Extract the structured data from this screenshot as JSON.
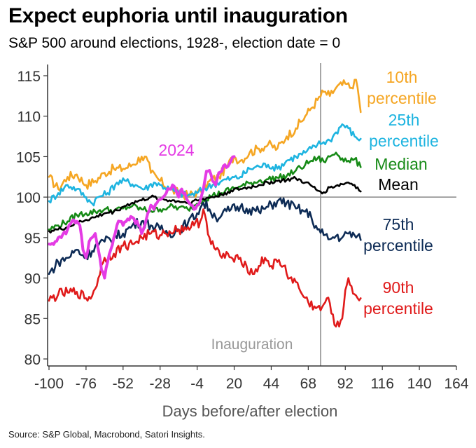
{
  "header": {
    "title": "Expect euphoria until inauguration",
    "subtitle": "S&P 500 around elections, 1928-, election date = 0"
  },
  "footer": {
    "source": "Source: S&P Global, Macrobond, Satori Insights."
  },
  "colors": {
    "p10": "#F5A623",
    "p25": "#1EB4E0",
    "median": "#168A16",
    "mean": "#000000",
    "p75": "#0D2B55",
    "p90": "#E01A1A",
    "y2024": "#E43BE4",
    "axis": "#333333",
    "vline": "#888888",
    "baseline": "#888888"
  },
  "chart_data": {
    "type": "line",
    "title": "Expect euphoria until inauguration",
    "subtitle": "S&P 500 around elections, 1928-, election date = 0",
    "xlabel": "Days before/after election",
    "ylabel": "",
    "xlim": [
      -100,
      164
    ],
    "ylim": [
      80,
      115
    ],
    "x_ticks": [
      -100,
      -76,
      -52,
      -28,
      -4,
      20,
      44,
      68,
      92,
      116,
      140,
      164
    ],
    "y_ticks": [
      80,
      85,
      90,
      95,
      100,
      105,
      110,
      115
    ],
    "reference_line_y": 100,
    "annotation": {
      "label": "Inauguration",
      "x": 76
    },
    "series": [
      {
        "key": "p10",
        "name": "10th percentile",
        "label_lines": [
          "10th",
          "percentile"
        ],
        "points": [
          [
            -100,
            102.5
          ],
          [
            -94,
            101
          ],
          [
            -88,
            102.5
          ],
          [
            -82,
            102.8
          ],
          [
            -76,
            101.5
          ],
          [
            -70,
            102
          ],
          [
            -64,
            103
          ],
          [
            -58,
            103.5
          ],
          [
            -52,
            103.5
          ],
          [
            -46,
            104
          ],
          [
            -40,
            105
          ],
          [
            -36,
            104.5
          ],
          [
            -34,
            103
          ],
          [
            -28,
            102
          ],
          [
            -22,
            101
          ],
          [
            -16,
            100.5
          ],
          [
            -10,
            100.2
          ],
          [
            -4,
            100.6
          ],
          [
            0,
            100.8
          ],
          [
            4,
            102
          ],
          [
            10,
            102.5
          ],
          [
            16,
            104
          ],
          [
            20,
            105
          ],
          [
            24,
            104.5
          ],
          [
            30,
            105.5
          ],
          [
            36,
            106
          ],
          [
            42,
            106.5
          ],
          [
            48,
            106
          ],
          [
            54,
            107.5
          ],
          [
            60,
            108.5
          ],
          [
            66,
            110
          ],
          [
            70,
            111
          ],
          [
            74,
            112
          ],
          [
            78,
            113
          ],
          [
            82,
            112.5
          ],
          [
            86,
            113.5
          ],
          [
            92,
            114
          ],
          [
            96,
            113.5
          ],
          [
            98,
            114.5
          ],
          [
            100,
            113.5
          ],
          [
            102,
            110.5
          ]
        ]
      },
      {
        "key": "p25",
        "name": "25th percentile",
        "label_lines": [
          "25th",
          "percentile"
        ],
        "points": [
          [
            -100,
            99.5
          ],
          [
            -94,
            100.5
          ],
          [
            -88,
            101.5
          ],
          [
            -82,
            101
          ],
          [
            -76,
            100
          ],
          [
            -72,
            99.2
          ],
          [
            -68,
            100
          ],
          [
            -62,
            100.5
          ],
          [
            -56,
            101.8
          ],
          [
            -50,
            102
          ],
          [
            -44,
            101.5
          ],
          [
            -38,
            101
          ],
          [
            -32,
            101.8
          ],
          [
            -28,
            101.5
          ],
          [
            -22,
            101
          ],
          [
            -16,
            100.5
          ],
          [
            -10,
            100.2
          ],
          [
            -4,
            100.5
          ],
          [
            0,
            101
          ],
          [
            6,
            101.5
          ],
          [
            12,
            102
          ],
          [
            18,
            102.3
          ],
          [
            24,
            102.5
          ],
          [
            30,
            103.5
          ],
          [
            36,
            103.8
          ],
          [
            42,
            104
          ],
          [
            48,
            103.5
          ],
          [
            54,
            104.5
          ],
          [
            60,
            105
          ],
          [
            66,
            105.5
          ],
          [
            70,
            106
          ],
          [
            74,
            106.5
          ],
          [
            78,
            106.8
          ],
          [
            82,
            107
          ],
          [
            86,
            108
          ],
          [
            90,
            109
          ],
          [
            94,
            108.5
          ],
          [
            98,
            107.5
          ],
          [
            102,
            107.2
          ]
        ]
      },
      {
        "key": "median",
        "name": "Median",
        "label_lines": [
          "Median"
        ],
        "points": [
          [
            -100,
            96
          ],
          [
            -94,
            96.5
          ],
          [
            -88,
            97
          ],
          [
            -82,
            97.8
          ],
          [
            -76,
            98
          ],
          [
            -70,
            98.2
          ],
          [
            -64,
            98.5
          ],
          [
            -58,
            98.3
          ],
          [
            -52,
            98.6
          ],
          [
            -46,
            98.9
          ],
          [
            -40,
            98.5
          ],
          [
            -34,
            98.3
          ],
          [
            -28,
            98.5
          ],
          [
            -22,
            98.8
          ],
          [
            -16,
            98.7
          ],
          [
            -10,
            98.5
          ],
          [
            -4,
            99.2
          ],
          [
            0,
            99.7
          ],
          [
            6,
            100.2
          ],
          [
            12,
            100.5
          ],
          [
            18,
            101
          ],
          [
            24,
            101.3
          ],
          [
            30,
            101.7
          ],
          [
            36,
            102
          ],
          [
            42,
            102.2
          ],
          [
            48,
            102.4
          ],
          [
            54,
            102.6
          ],
          [
            60,
            103.3
          ],
          [
            66,
            104
          ],
          [
            70,
            104.5
          ],
          [
            74,
            104.8
          ],
          [
            78,
            104.4
          ],
          [
            82,
            105
          ],
          [
            86,
            105.5
          ],
          [
            90,
            104.8
          ],
          [
            94,
            104.5
          ],
          [
            98,
            104.7
          ],
          [
            102,
            103.7
          ]
        ]
      },
      {
        "key": "mean",
        "name": "Mean",
        "label_lines": [
          "Mean"
        ],
        "points": [
          [
            -100,
            95.8
          ],
          [
            -94,
            96
          ],
          [
            -88,
            96.3
          ],
          [
            -82,
            96.8
          ],
          [
            -76,
            97.2
          ],
          [
            -70,
            97.5
          ],
          [
            -64,
            98
          ],
          [
            -58,
            98.2
          ],
          [
            -52,
            98.8
          ],
          [
            -46,
            99.3
          ],
          [
            -40,
            99.6
          ],
          [
            -34,
            100
          ],
          [
            -28,
            99.8
          ],
          [
            -22,
            99.6
          ],
          [
            -16,
            99.5
          ],
          [
            -10,
            99.3
          ],
          [
            -4,
            99.6
          ],
          [
            0,
            99.8
          ],
          [
            6,
            100
          ],
          [
            12,
            100.3
          ],
          [
            18,
            100.8
          ],
          [
            24,
            101
          ],
          [
            30,
            101.2
          ],
          [
            36,
            101.5
          ],
          [
            42,
            101.8
          ],
          [
            48,
            102
          ],
          [
            54,
            102.1
          ],
          [
            60,
            102.3
          ],
          [
            66,
            101.8
          ],
          [
            70,
            101.4
          ],
          [
            74,
            100.8
          ],
          [
            78,
            100.6
          ],
          [
            82,
            101.2
          ],
          [
            86,
            101.4
          ],
          [
            90,
            101.6
          ],
          [
            94,
            101.8
          ],
          [
            98,
            101.5
          ],
          [
            102,
            100.7
          ]
        ]
      },
      {
        "key": "p75",
        "name": "75th percentile",
        "label_lines": [
          "75th",
          "percentile"
        ],
        "points": [
          [
            -100,
            90.5
          ],
          [
            -94,
            92
          ],
          [
            -88,
            92.5
          ],
          [
            -82,
            93.5
          ],
          [
            -76,
            92.5
          ],
          [
            -70,
            94
          ],
          [
            -64,
            94.5
          ],
          [
            -58,
            95
          ],
          [
            -52,
            95.5
          ],
          [
            -46,
            96.5
          ],
          [
            -40,
            97
          ],
          [
            -34,
            96.5
          ],
          [
            -28,
            96
          ],
          [
            -22,
            95.5
          ],
          [
            -16,
            96
          ],
          [
            -10,
            96.8
          ],
          [
            -4,
            98
          ],
          [
            0,
            99.3
          ],
          [
            4,
            98.5
          ],
          [
            8,
            97.5
          ],
          [
            12,
            97.8
          ],
          [
            18,
            98.5
          ],
          [
            24,
            98.8
          ],
          [
            30,
            98.5
          ],
          [
            36,
            98.2
          ],
          [
            42,
            98.8
          ],
          [
            48,
            99.5
          ],
          [
            54,
            99.3
          ],
          [
            60,
            98.6
          ],
          [
            66,
            98.2
          ],
          [
            70,
            97.5
          ],
          [
            74,
            96
          ],
          [
            78,
            95.3
          ],
          [
            82,
            94.8
          ],
          [
            86,
            95.2
          ],
          [
            90,
            95
          ],
          [
            94,
            95.5
          ],
          [
            98,
            95.3
          ],
          [
            102,
            94.7
          ]
        ]
      },
      {
        "key": "p90",
        "name": "90th percentile",
        "label_lines": [
          "90th",
          "percentile"
        ],
        "points": [
          [
            -100,
            87.2
          ],
          [
            -94,
            88
          ],
          [
            -88,
            88.2
          ],
          [
            -82,
            88.3
          ],
          [
            -76,
            87.5
          ],
          [
            -72,
            87.8
          ],
          [
            -68,
            90
          ],
          [
            -64,
            92.5
          ],
          [
            -58,
            93
          ],
          [
            -52,
            94
          ],
          [
            -46,
            94.2
          ],
          [
            -40,
            95
          ],
          [
            -34,
            95.5
          ],
          [
            -28,
            95.3
          ],
          [
            -22,
            95.8
          ],
          [
            -16,
            96
          ],
          [
            -10,
            96.3
          ],
          [
            -6,
            96.5
          ],
          [
            -2,
            97
          ],
          [
            0,
            98.5
          ],
          [
            2,
            97
          ],
          [
            4,
            95
          ],
          [
            8,
            93.5
          ],
          [
            12,
            92.5
          ],
          [
            16,
            93
          ],
          [
            20,
            92
          ],
          [
            24,
            92.5
          ],
          [
            28,
            91.5
          ],
          [
            32,
            90.5
          ],
          [
            36,
            91.5
          ],
          [
            40,
            92.5
          ],
          [
            44,
            91.5
          ],
          [
            48,
            92
          ],
          [
            52,
            91.5
          ],
          [
            56,
            90
          ],
          [
            60,
            89.5
          ],
          [
            64,
            88
          ],
          [
            68,
            87
          ],
          [
            72,
            86.5
          ],
          [
            76,
            86
          ],
          [
            80,
            87.5
          ],
          [
            84,
            85.5
          ],
          [
            86,
            84
          ],
          [
            88,
            84
          ],
          [
            90,
            85
          ],
          [
            92,
            88.5
          ],
          [
            94,
            90
          ],
          [
            96,
            89
          ],
          [
            98,
            88
          ],
          [
            100,
            87.5
          ],
          [
            102,
            87.5
          ]
        ]
      },
      {
        "key": "y2024",
        "name": "2024",
        "label_lines": [
          "2024"
        ],
        "points": [
          [
            -100,
            94.2
          ],
          [
            -96,
            94.5
          ],
          [
            -92,
            95
          ],
          [
            -88,
            96
          ],
          [
            -84,
            97.2
          ],
          [
            -80,
            96.5
          ],
          [
            -78,
            93.5
          ],
          [
            -76,
            92.5
          ],
          [
            -74,
            94.5
          ],
          [
            -72,
            95
          ],
          [
            -70,
            95.5
          ],
          [
            -68,
            93.5
          ],
          [
            -66,
            91
          ],
          [
            -64,
            90
          ],
          [
            -62,
            92
          ],
          [
            -60,
            93.5
          ],
          [
            -58,
            95
          ],
          [
            -56,
            96.5
          ],
          [
            -54,
            97
          ],
          [
            -52,
            96.5
          ],
          [
            -50,
            97
          ],
          [
            -46,
            97.5
          ],
          [
            -42,
            96.5
          ],
          [
            -40,
            95.5
          ],
          [
            -38,
            96.5
          ],
          [
            -36,
            98
          ],
          [
            -34,
            99
          ],
          [
            -32,
            98.5
          ],
          [
            -30,
            99.3
          ],
          [
            -28,
            99.7
          ],
          [
            -26,
            100
          ],
          [
            -24,
            100.5
          ],
          [
            -22,
            101
          ],
          [
            -20,
            101.5
          ],
          [
            -18,
            101
          ],
          [
            -16,
            100
          ],
          [
            -14,
            101
          ],
          [
            -12,
            100.5
          ],
          [
            -10,
            99.5
          ],
          [
            -8,
            99
          ],
          [
            -6,
            98.5
          ],
          [
            -4,
            99
          ],
          [
            -2,
            99.5
          ],
          [
            0,
            101
          ],
          [
            2,
            103.2
          ],
          [
            4,
            103.3
          ],
          [
            6,
            102
          ],
          [
            8,
            101.5
          ],
          [
            10,
            103
          ],
          [
            12,
            103.2
          ],
          [
            14,
            104
          ],
          [
            16,
            103.8
          ],
          [
            18,
            104.5
          ],
          [
            20,
            105
          ]
        ]
      }
    ]
  }
}
